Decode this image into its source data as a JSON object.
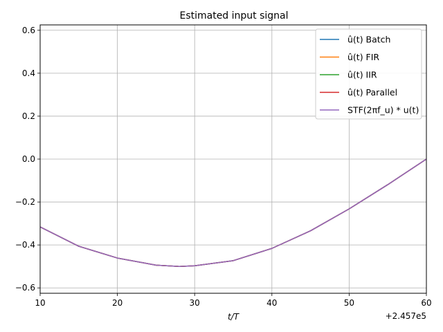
{
  "chart_data": {
    "type": "line",
    "title": "Estimated input signal",
    "xlabel": "t/T",
    "ylabel": "",
    "x_offset_label": "+2.457e5",
    "xlim": [
      10,
      60
    ],
    "ylim": [
      -0.625,
      0.625
    ],
    "x_ticks": [
      "10",
      "20",
      "30",
      "40",
      "50",
      "60"
    ],
    "y_ticks": [
      "−0.6",
      "−0.4",
      "−0.2",
      "0.0",
      "0.2",
      "0.4",
      "0.6"
    ],
    "grid": true,
    "legend_position": "upper-right",
    "x": [
      10,
      15,
      20,
      25,
      28,
      30,
      35,
      40,
      45,
      50,
      55,
      60
    ],
    "series": [
      {
        "name": "û(t) Batch",
        "color": "#1f77b4",
        "values": [
          -0.316,
          -0.406,
          -0.461,
          -0.494,
          -0.5,
          -0.497,
          -0.473,
          -0.416,
          -0.334,
          -0.232,
          -0.119,
          0.0
        ]
      },
      {
        "name": "û(t) FIR",
        "color": "#ff7f0e",
        "values": [
          -0.316,
          -0.406,
          -0.461,
          -0.494,
          -0.5,
          -0.497,
          -0.473,
          -0.416,
          -0.334,
          -0.232,
          -0.119,
          0.0
        ]
      },
      {
        "name": "û(t) IIR",
        "color": "#2ca02c",
        "values": [
          -0.316,
          -0.406,
          -0.461,
          -0.494,
          -0.5,
          -0.497,
          -0.473,
          -0.416,
          -0.334,
          -0.232,
          -0.119,
          0.0
        ]
      },
      {
        "name": "û(t) Parallel",
        "color": "#d62728",
        "values": [
          -0.316,
          -0.406,
          -0.461,
          -0.494,
          -0.5,
          -0.497,
          -0.473,
          -0.416,
          -0.334,
          -0.232,
          -0.119,
          0.0
        ]
      },
      {
        "name": "STF(2πf_u) * u(t)",
        "color": "#9467bd",
        "values": [
          -0.316,
          -0.406,
          -0.461,
          -0.494,
          -0.5,
          -0.497,
          -0.473,
          -0.416,
          -0.334,
          -0.232,
          -0.119,
          0.0
        ]
      }
    ]
  }
}
